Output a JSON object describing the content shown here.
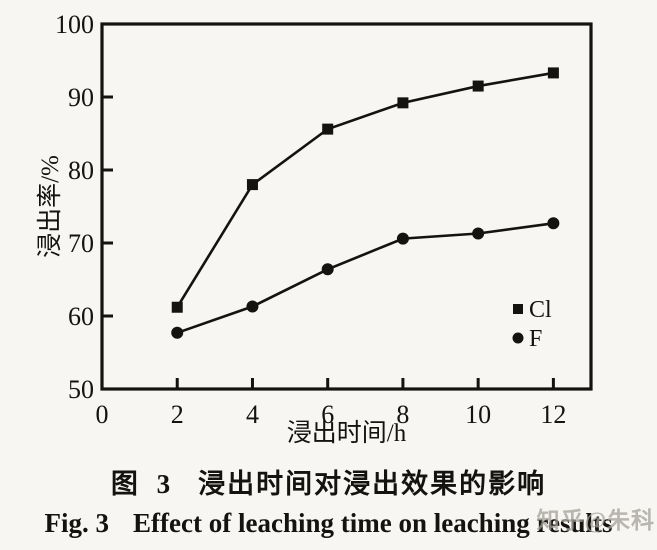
{
  "figure": {
    "captions": {
      "zh_prefix": "图 3",
      "zh_title": "浸出时间对浸出效果的影响",
      "en_prefix": "Fig. 3",
      "en_title": "Effect of leaching time on leaching results"
    },
    "watermark": "知乎@朱科"
  },
  "chart_data": {
    "type": "line",
    "x": [
      2,
      4,
      6,
      8,
      10,
      12
    ],
    "series": [
      {
        "name": "Cl",
        "marker": "square",
        "values": [
          61.2,
          78.0,
          85.6,
          89.2,
          91.5,
          93.3
        ]
      },
      {
        "name": "F",
        "marker": "circle",
        "values": [
          57.7,
          61.3,
          66.4,
          70.6,
          71.3,
          72.7
        ]
      }
    ],
    "title": "",
    "xlabel": "浸出时间/h",
    "ylabel": "浸出率/%",
    "xlim": [
      0,
      13
    ],
    "ylim": [
      50,
      100
    ],
    "xticks": [
      0,
      2,
      4,
      6,
      8,
      10,
      12
    ],
    "yticks": [
      50,
      60,
      70,
      80,
      90,
      100
    ],
    "grid": false,
    "legend_position": "inside right, lower half",
    "line_color": "#151310",
    "background": "#f7f6f3"
  }
}
